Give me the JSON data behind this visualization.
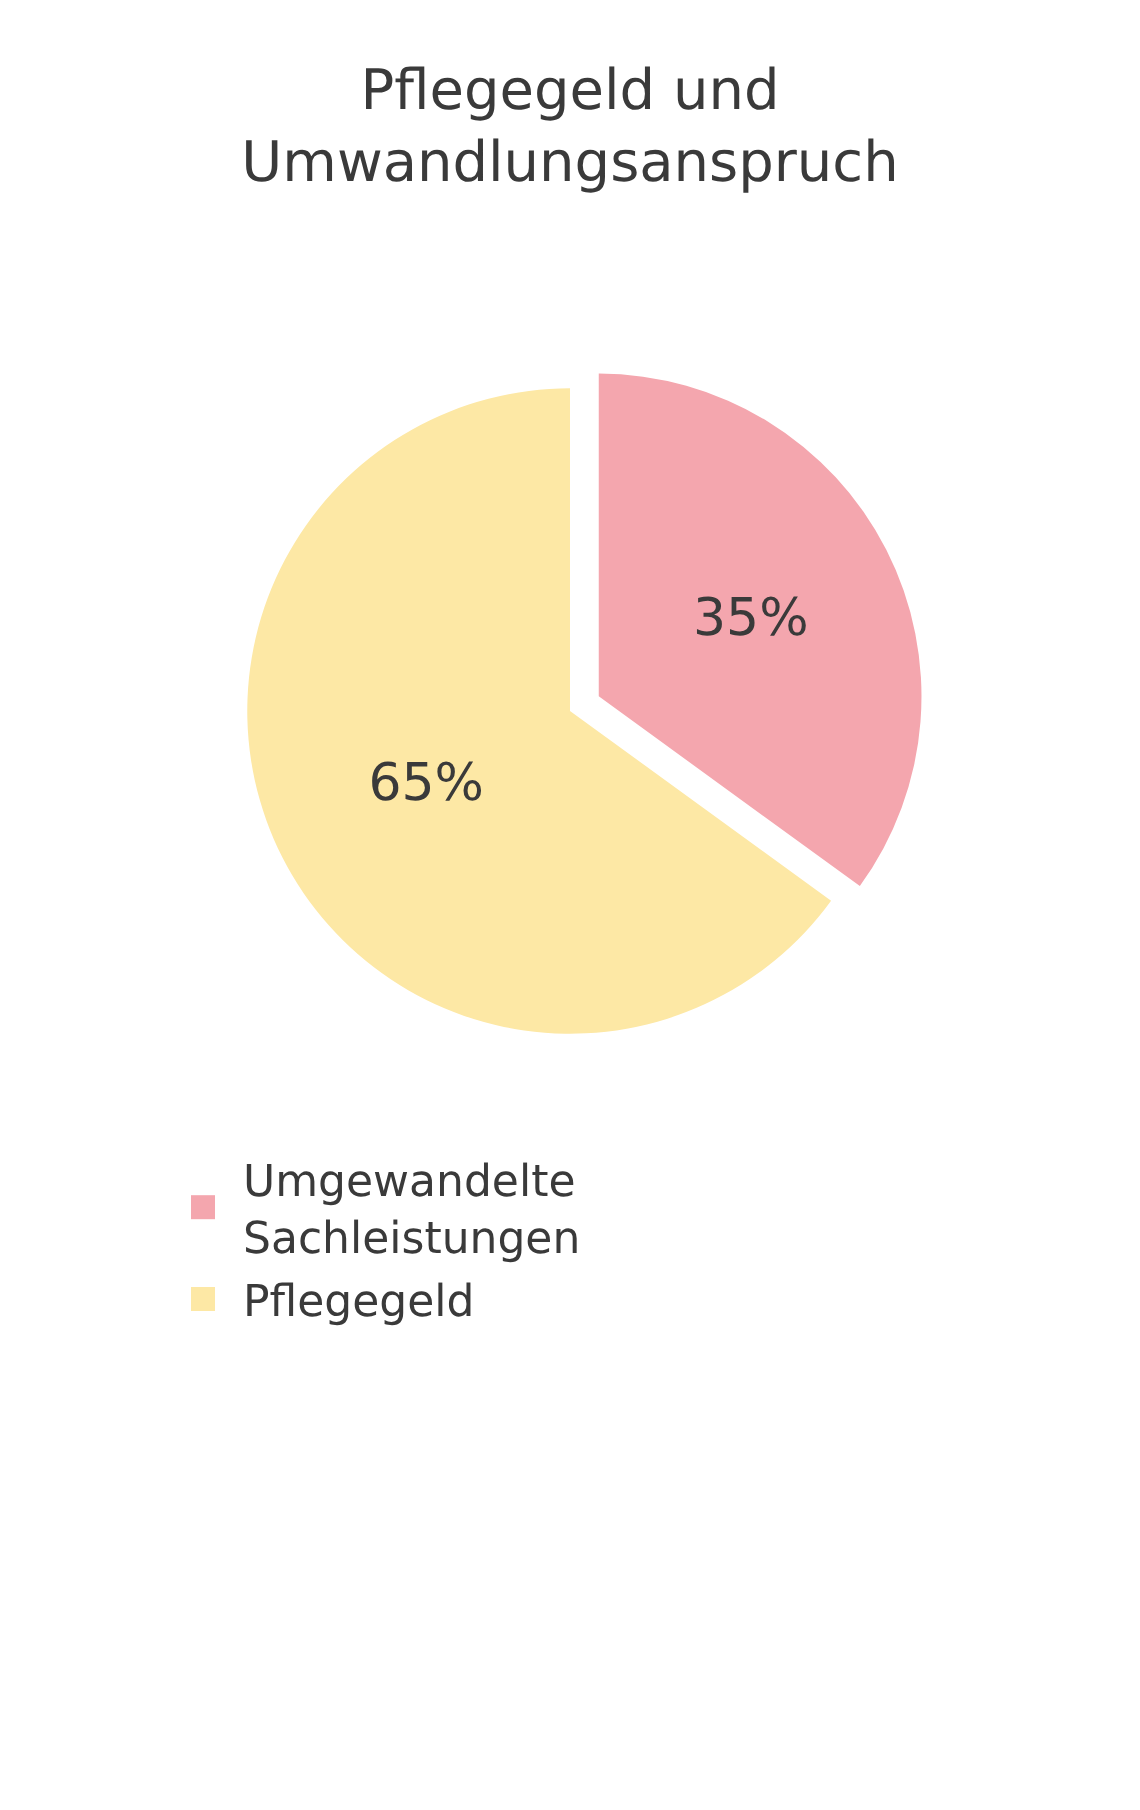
{
  "chart_data": {
    "type": "pie",
    "title": "Pflegegeld und Umwandlungsanspruch",
    "categories": [
      "Umgewandelte Sachleistungen",
      "Pflegegeld"
    ],
    "values": [
      35,
      65
    ],
    "value_labels": [
      "35%",
      "65%"
    ],
    "colors": [
      "#f4a6ae",
      "#fde8a5"
    ],
    "legend": "bottom"
  }
}
